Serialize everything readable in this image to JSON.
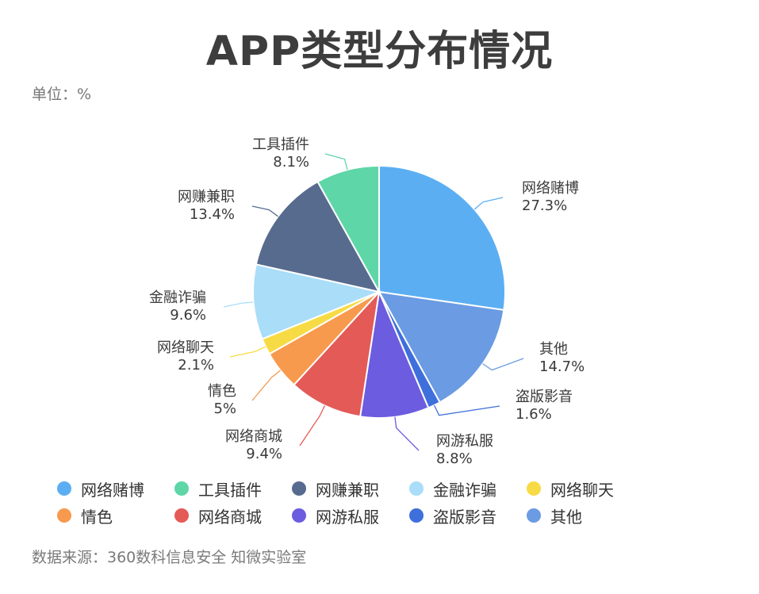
{
  "title": "APP类型分布情况",
  "unit": "单位：%",
  "source": "数据来源：360数科信息安全 知微实验室",
  "chart_data": {
    "type": "pie",
    "title": "APP类型分布情况",
    "unit": "%",
    "start_angle_deg": 0,
    "direction": "clockwise",
    "slices": [
      {
        "label": "网络赌博",
        "value": 27.3,
        "display": "27.3%",
        "color": "#5BAEF2"
      },
      {
        "label": "其他",
        "value": 14.7,
        "display": "14.7%",
        "color": "#6A9BE3"
      },
      {
        "label": "盗版影音",
        "value": 1.6,
        "display": "1.6%",
        "color": "#3F6FDB"
      },
      {
        "label": "网游私服",
        "value": 8.8,
        "display": "8.8%",
        "color": "#6C5CE0"
      },
      {
        "label": "网络商城",
        "value": 9.4,
        "display": "9.4%",
        "color": "#E35A57"
      },
      {
        "label": "情色",
        "value": 5.0,
        "display": "5%",
        "color": "#F79A4E"
      },
      {
        "label": "网络聊天",
        "value": 2.1,
        "display": "2.1%",
        "color": "#F7DB45"
      },
      {
        "label": "金融诈骗",
        "value": 9.6,
        "display": "9.6%",
        "color": "#A9DDF8"
      },
      {
        "label": "网赚兼职",
        "value": 13.4,
        "display": "13.4%",
        "color": "#576B8E"
      },
      {
        "label": "工具插件",
        "value": 8.1,
        "display": "8.1%",
        "color": "#5ED6A7"
      }
    ],
    "legend": [
      {
        "label": "网络赌博",
        "color": "#5BAEF2"
      },
      {
        "label": "工具插件",
        "color": "#5ED6A7"
      },
      {
        "label": "网赚兼职",
        "color": "#576B8E"
      },
      {
        "label": "金融诈骗",
        "color": "#A9DDF8"
      },
      {
        "label": "网络聊天",
        "color": "#F7DB45"
      },
      {
        "label": "情色",
        "color": "#F79A4E"
      },
      {
        "label": "网络商城",
        "color": "#E35A57"
      },
      {
        "label": "网游私服",
        "color": "#6C5CE0"
      },
      {
        "label": "盗版影音",
        "color": "#3F6FDB"
      },
      {
        "label": "其他",
        "color": "#6A9BE3"
      }
    ],
    "legend_position": "bottom"
  }
}
